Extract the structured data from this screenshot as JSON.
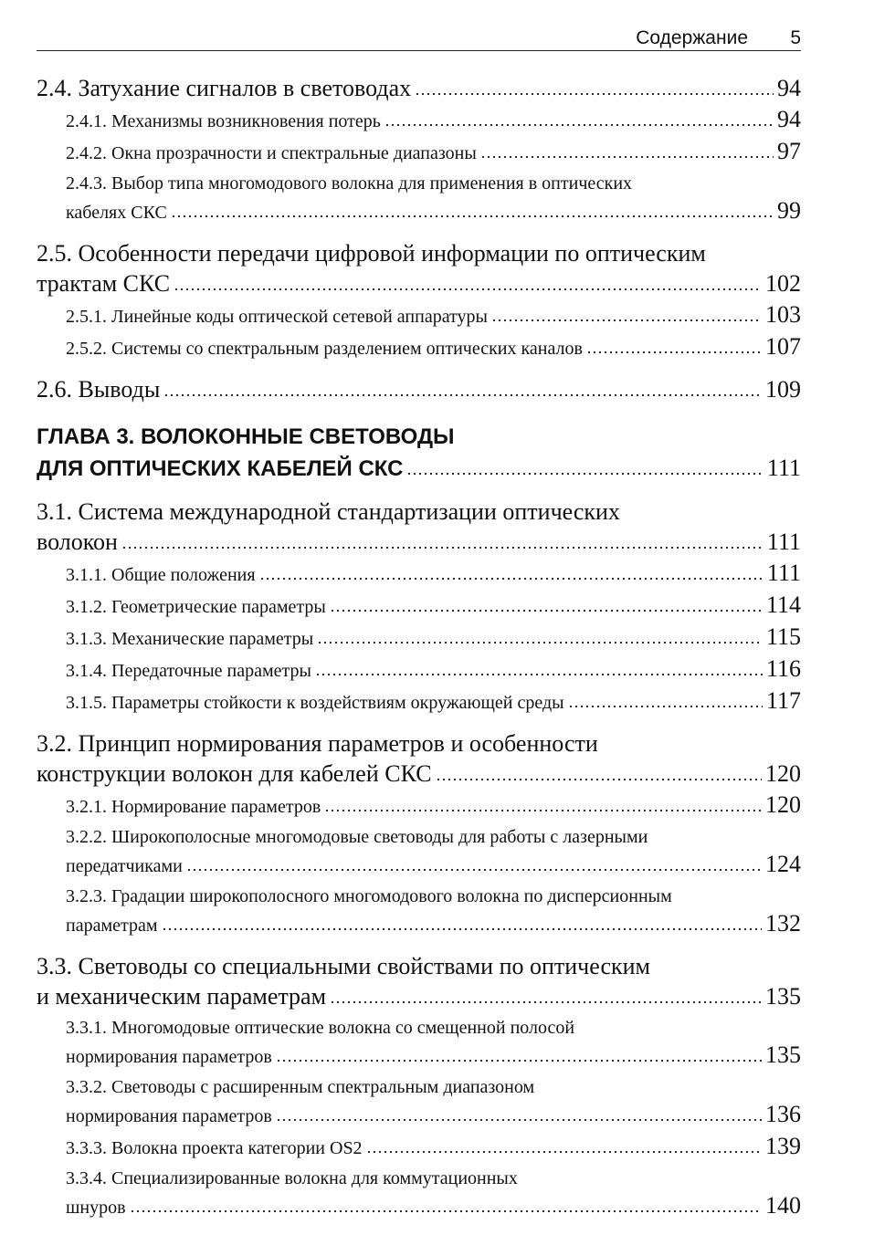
{
  "header": {
    "title": "Содержание",
    "page": 5
  },
  "part1": [
    {
      "lines": [
        "2.4. Затухание сигналов в световодах"
      ],
      "page": 94,
      "subsections": [
        {
          "lines": [
            "2.4.1. Механизмы возникновения потерь"
          ],
          "page": 94
        },
        {
          "lines": [
            "2.4.2. Окна прозрачности и спектральные диапазоны"
          ],
          "page": 97
        },
        {
          "lines": [
            "2.4.3. Выбор типа многомодового волокна для применения в оптических",
            "кабелях СКС"
          ],
          "page": 99
        }
      ]
    },
    {
      "lines": [
        "2.5. Особенности передачи цифровой информации по оптическим",
        "трактам СКС"
      ],
      "page": 102,
      "subsections": [
        {
          "lines": [
            "2.5.1. Линейные коды оптической сетевой аппаратуры"
          ],
          "page": 103
        },
        {
          "lines": [
            "2.5.2. Системы со спектральным разделением оптических каналов"
          ],
          "page": 107
        }
      ]
    },
    {
      "lines": [
        "2.6. Выводы"
      ],
      "page": 109,
      "subsections": []
    }
  ],
  "chapter": {
    "lines": [
      "ГЛАВА 3. ВОЛОКОННЫЕ СВЕТОВОДЫ",
      "ДЛЯ ОПТИЧЕСКИХ КАБЕЛЕЙ СКС"
    ],
    "page": 111
  },
  "part2": [
    {
      "lines": [
        "3.1. Система международной стандартизации оптических",
        "волокон"
      ],
      "page": 111,
      "subsections": [
        {
          "lines": [
            "3.1.1. Общие положения"
          ],
          "page": 111
        },
        {
          "lines": [
            "3.1.2. Геометрические параметры"
          ],
          "page": 114
        },
        {
          "lines": [
            "3.1.3. Механические параметры"
          ],
          "page": 115
        },
        {
          "lines": [
            "3.1.4. Передаточные параметры"
          ],
          "page": 116
        },
        {
          "lines": [
            "3.1.5. Параметры стойкости к воздействиям окружающей среды"
          ],
          "page": 117
        }
      ]
    },
    {
      "lines": [
        "3.2. Принцип нормирования параметров и особенности",
        "конструкции волокон для кабелей СКС"
      ],
      "page": 120,
      "subsections": [
        {
          "lines": [
            "3.2.1. Нормирование параметров"
          ],
          "page": 120
        },
        {
          "lines": [
            "3.2.2. Широкополосные многомодовые световоды для работы с лазерными",
            "передатчиками"
          ],
          "page": 124
        },
        {
          "lines": [
            "3.2.3. Градации широкополосного многомодового волокна по дисперсионным",
            "параметрам"
          ],
          "page": 132
        }
      ]
    },
    {
      "lines": [
        "3.3. Световоды со специальными свойствами по оптическим",
        "и механическим параметрам"
      ],
      "page": 135,
      "subsections": [
        {
          "lines": [
            "3.3.1. Многомодовые оптические волокна со смещенной полосой",
            "нормирования параметров"
          ],
          "page": 135
        },
        {
          "lines": [
            "3.3.2. Световоды с расширенным спектральным диапазоном",
            "нормирования параметров"
          ],
          "page": 136
        },
        {
          "lines": [
            "3.3.3. Волокна проекта категории OS2"
          ],
          "page": 139
        },
        {
          "lines": [
            "3.3.4. Специализированные волокна для коммутационных",
            "шнуров"
          ],
          "page": 140
        }
      ]
    }
  ]
}
